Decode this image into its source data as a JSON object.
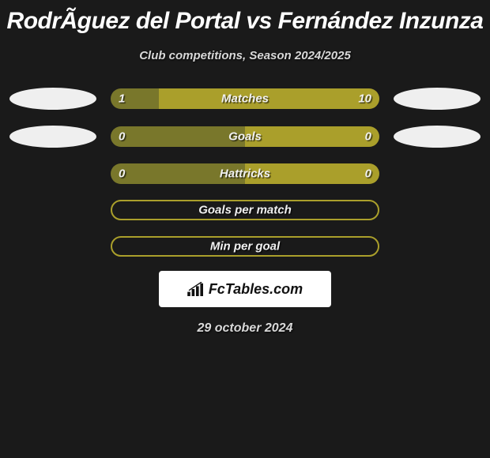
{
  "title": "RodrÃ­guez del Portal vs Fernández Inzunza",
  "subtitle": "Club competitions, Season 2024/2025",
  "date": "29 october 2024",
  "brand": "FcTables.com",
  "colors": {
    "background": "#1a1a1a",
    "left_fill": "#79772b",
    "right_fill": "#aa9f2b",
    "border_olive": "#aa9f2b",
    "badge": "#efefef",
    "text_light": "#f0f0f0"
  },
  "rows": [
    {
      "label": "Matches",
      "left_val": "1",
      "right_val": "10",
      "left_pct": 18,
      "right_pct": 82,
      "left_color": "#79772b",
      "right_color": "#aa9f2b",
      "bordered": false,
      "show_left_badge": true,
      "show_right_badge": true
    },
    {
      "label": "Goals",
      "left_val": "0",
      "right_val": "0",
      "left_pct": 50,
      "right_pct": 50,
      "left_color": "#79772b",
      "right_color": "#aa9f2b",
      "bordered": false,
      "show_left_badge": true,
      "show_right_badge": true
    },
    {
      "label": "Hattricks",
      "left_val": "0",
      "right_val": "0",
      "left_pct": 50,
      "right_pct": 50,
      "left_color": "#79772b",
      "right_color": "#aa9f2b",
      "bordered": false,
      "show_left_badge": false,
      "show_right_badge": false
    },
    {
      "label": "Goals per match",
      "left_val": "",
      "right_val": "",
      "left_pct": 0,
      "right_pct": 0,
      "left_color": "transparent",
      "right_color": "transparent",
      "bordered": true,
      "border_color": "#aa9f2b",
      "show_left_badge": false,
      "show_right_badge": false
    },
    {
      "label": "Min per goal",
      "left_val": "",
      "right_val": "",
      "left_pct": 0,
      "right_pct": 0,
      "left_color": "transparent",
      "right_color": "transparent",
      "bordered": true,
      "border_color": "#aa9f2b",
      "show_left_badge": false,
      "show_right_badge": false
    }
  ]
}
